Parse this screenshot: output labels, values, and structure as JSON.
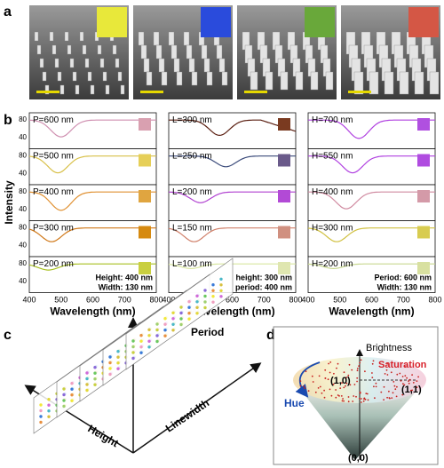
{
  "panel_labels": {
    "a": "a",
    "b": "b",
    "c": "c",
    "d": "d"
  },
  "panel_a": {
    "swatches": [
      "#e8e83a",
      "#2a4bdc",
      "#69a83a",
      "#d45745"
    ],
    "scale_bar_color": "#e5d800"
  },
  "panel_b": {
    "y_axis_label": "Intensity",
    "x_axis_label": "Wavelength (nm)",
    "x_ticks": [
      "400",
      "500",
      "600",
      "700",
      "800"
    ],
    "y_ticks": [
      "80",
      "40"
    ],
    "columns": [
      {
        "name": "period",
        "labels": [
          "P=600 nm",
          "P=500 nm",
          "P=400 nm",
          "P=300 nm",
          "P=200 nm"
        ],
        "swatches": [
          "#d9a0b0",
          "#e6cf58",
          "#e0a540",
          "#d68a10",
          "#c9cf40"
        ],
        "curve_colors": [
          "#cf8fb0",
          "#d8c048",
          "#e09030",
          "#d07818",
          "#a8c020"
        ],
        "dip_nm": [
          500,
          490,
          500,
          470,
          460
        ],
        "dip_depth": [
          0.55,
          0.55,
          0.6,
          0.45,
          0.2
        ],
        "note_lines": [
          "Height: 400 nm",
          "Width: 130 nm"
        ]
      },
      {
        "name": "linewidth",
        "labels": [
          "L=300 nm",
          "L=250 nm",
          "L=200 nm",
          "L=150 nm",
          "L=100 nm"
        ],
        "swatches": [
          "#7a3a20",
          "#6a5a8a",
          "#b24ad6",
          "#d09080",
          "#dfe6b0"
        ],
        "curve_colors": [
          "#5a1e10",
          "#3a4a7a",
          "#b040d0",
          "#d0806a",
          "#d8e6a0"
        ],
        "dip_nm": [
          560,
          580,
          500,
          480,
          470
        ],
        "dip_depth": [
          0.5,
          0.35,
          0.35,
          0.45,
          0.15
        ],
        "note_lines": [
          "height: 300 nm",
          "period: 400 nm"
        ]
      },
      {
        "name": "height",
        "labels": [
          "H=700 nm",
          "H=550 nm",
          "H=400 nm",
          "H=300 nm",
          "H=200 nm"
        ],
        "swatches": [
          "#b050e0",
          "#b04ce0",
          "#d49aa8",
          "#d8cc50",
          "#d8e0a0"
        ],
        "curve_colors": [
          "#b040e0",
          "#b040e0",
          "#d08aa0",
          "#d0c040",
          "#c8d890"
        ],
        "dip_nm": [
          560,
          540,
          520,
          490,
          480
        ],
        "dip_depth": [
          0.6,
          0.55,
          0.55,
          0.45,
          0.15
        ],
        "note_lines": [
          "Period: 600 nm",
          "Width: 130 nm"
        ]
      }
    ]
  },
  "panel_c": {
    "axis_labels": {
      "period": "Period",
      "height": "Height",
      "linewidth": "Linewidth"
    }
  },
  "panel_d": {
    "brightness": "Brightness",
    "saturation": "Saturation",
    "hue": "Hue",
    "point_10": "(1,0)",
    "point_11": "(1,1)",
    "point_00": "(0,0)",
    "colors": {
      "saturation": "#d8202a",
      "hue": "#1a4ab0",
      "points": "#c8201e"
    }
  }
}
